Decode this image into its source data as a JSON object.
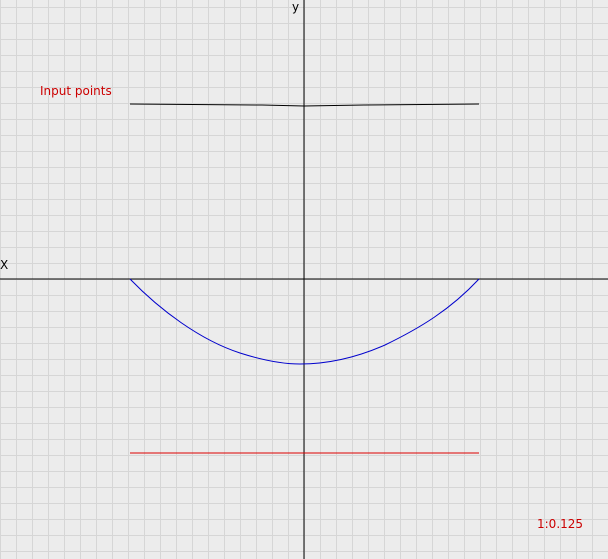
{
  "plot": {
    "x_axis_label": "X",
    "y_axis_label": "y",
    "legend_text": "Input points",
    "scale_text": "1:0.125",
    "colors": {
      "background": "#ececec",
      "grid": "#d6d6d6",
      "axis": "#000000",
      "input_line": "#000000",
      "curve": "#0000cc",
      "red_line": "#dd0000",
      "legend": "#cc0000",
      "scale": "#cc0000"
    }
  }
}
